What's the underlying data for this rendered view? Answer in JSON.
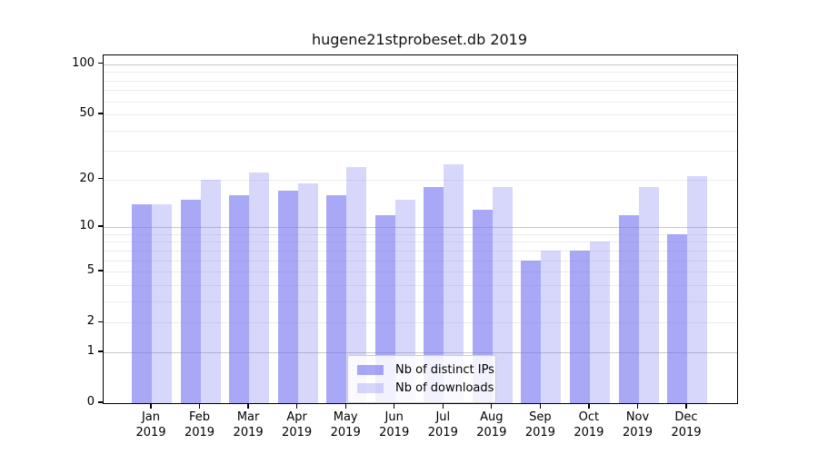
{
  "chart_data": {
    "type": "bar",
    "title": "hugene21stprobeset.db 2019",
    "scale": "log1p",
    "grid": true,
    "categories": [
      "Jan",
      "Feb",
      "Mar",
      "Apr",
      "May",
      "Jun",
      "Jul",
      "Aug",
      "Sep",
      "Oct",
      "Nov",
      "Dec"
    ],
    "year": "2019",
    "series": [
      {
        "name": "Nb of distinct IPs",
        "color": "rgba(117,117,240,0.63)",
        "values": [
          14,
          15,
          16,
          17,
          16,
          12,
          18,
          13,
          6,
          7,
          12,
          9
        ]
      },
      {
        "name": "Nb of downloads",
        "color": "rgba(117,117,240,0.29)",
        "values": [
          14,
          20,
          22,
          19,
          24,
          15,
          25,
          18,
          7,
          8,
          18,
          21
        ]
      }
    ],
    "y_tick_labels": [
      100,
      50,
      20,
      10,
      5,
      2,
      1,
      0
    ],
    "major_gridlines": [
      1,
      10,
      100
    ],
    "minor_gridlines": [
      2,
      3,
      4,
      5,
      6,
      7,
      8,
      9,
      20,
      30,
      40,
      50,
      60,
      70,
      80,
      90
    ],
    "ylim": [
      0,
      113
    ],
    "legend_position": "lower center",
    "colors": {
      "bars_base": "#7575f0",
      "major_grid": "#c8c8c8",
      "minor_grid": "#ececec",
      "axis": "#000000",
      "background": "#ffffff"
    }
  }
}
